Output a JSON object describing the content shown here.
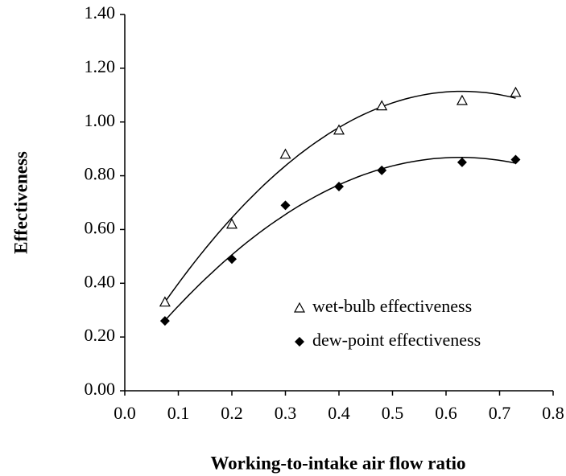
{
  "chart_data": {
    "type": "scatter",
    "x_label": "Working-to-intake air flow ratio",
    "y_label": "Effectiveness",
    "xlim": [
      0,
      0.8
    ],
    "xticks": [
      {
        "value": 0,
        "label": "0.0"
      },
      {
        "value": 0.1,
        "label": "0.1"
      },
      {
        "value": 0.2,
        "label": "0.2"
      },
      {
        "value": 0.3,
        "label": "0.3"
      },
      {
        "value": 0.4,
        "label": "0.4"
      },
      {
        "value": 0.5,
        "label": "0.5"
      },
      {
        "value": 0.6,
        "label": "0.6"
      },
      {
        "value": 0.7,
        "label": "0.7"
      },
      {
        "value": 0.8,
        "label": "0.8"
      }
    ],
    "ylim": [
      0,
      1.4
    ],
    "yticks": [
      {
        "value": 0,
        "label": "0.00"
      },
      {
        "value": 0.2,
        "label": "0.20"
      },
      {
        "value": 0.4,
        "label": "0.40"
      },
      {
        "value": 0.6,
        "label": "0.60"
      },
      {
        "value": 0.8,
        "label": "0.80"
      },
      {
        "value": 1.0,
        "label": "1.00"
      },
      {
        "value": 1.2,
        "label": "1.20"
      },
      {
        "value": 1.4,
        "label": "1.40"
      }
    ],
    "grid": false,
    "legend": "lower right",
    "trendline": "polynomial",
    "series": [
      {
        "name": "wet-bulb effectiveness",
        "color": "#000000",
        "marker": "triangle",
        "x": [
          0.075,
          0.2,
          0.3,
          0.4,
          0.48,
          0.63,
          0.73
        ],
        "values": [
          0.33,
          0.62,
          0.88,
          0.97,
          1.06,
          1.08,
          1.11
        ]
      },
      {
        "name": "dew-point effectiveness",
        "color": "#000000",
        "marker": "diamond",
        "x": [
          0.075,
          0.2,
          0.3,
          0.4,
          0.48,
          0.63,
          0.73
        ],
        "values": [
          0.26,
          0.49,
          0.69,
          0.76,
          0.82,
          0.85,
          0.86
        ]
      }
    ]
  }
}
